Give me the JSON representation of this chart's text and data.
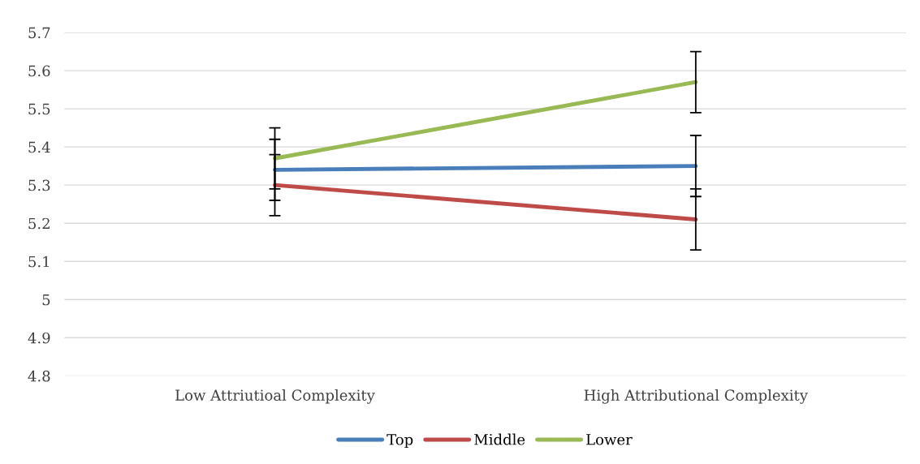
{
  "chart_data": {
    "type": "line",
    "categories": [
      "Low Attriutioal Complexity",
      "High Attributional Complexity"
    ],
    "series": [
      {
        "name": "Top",
        "color": "#4a7ebb",
        "values": [
          5.34,
          5.35
        ],
        "errors": [
          0.08,
          0.08
        ]
      },
      {
        "name": "Middle",
        "color": "#be4b48",
        "values": [
          5.3,
          5.21
        ],
        "errors": [
          0.08,
          0.08
        ]
      },
      {
        "name": "Lower",
        "color": "#98b954",
        "values": [
          5.37,
          5.57
        ],
        "errors": [
          0.08,
          0.08
        ]
      }
    ],
    "ylim": [
      4.8,
      5.7
    ],
    "yticks": [
      4.8,
      4.9,
      5,
      5.1,
      5.2,
      5.3,
      5.4,
      5.5,
      5.6,
      5.7
    ],
    "grid": "y",
    "legend": "bottom",
    "marker": "none",
    "line_style": "solid"
  }
}
